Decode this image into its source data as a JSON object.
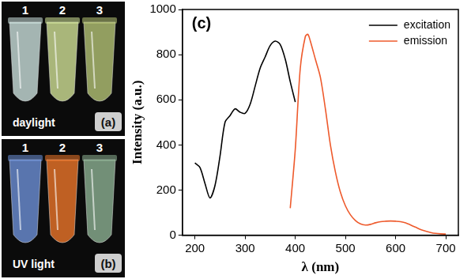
{
  "chart_data": {
    "type": "line",
    "annotations": [
      "(c)"
    ],
    "x_label": "λ (nm)",
    "y_label": "Intensity (a.u.)",
    "xlim": [
      175,
      725
    ],
    "xticks": [
      200,
      300,
      400,
      500,
      600,
      700
    ],
    "ylim": [
      0,
      1000
    ],
    "yticks": [
      0,
      200,
      400,
      600,
      800,
      1000
    ],
    "grid": false,
    "legend": "upper right",
    "series": [
      {
        "name": "excitation",
        "color": "#000000",
        "marker": "none",
        "x": [
          200,
          210,
          220,
          230,
          240,
          250,
          260,
          270,
          280,
          290,
          300,
          310,
          320,
          330,
          340,
          350,
          360,
          370,
          380,
          390,
          400
        ],
        "values": [
          320,
          300,
          230,
          165,
          220,
          350,
          500,
          530,
          560,
          545,
          540,
          580,
          660,
          740,
          790,
          840,
          860,
          845,
          780,
          680,
          590
        ]
      },
      {
        "name": "emission",
        "color": "#ee5a2c",
        "marker": "none",
        "x": [
          390,
          400,
          410,
          420,
          425,
          430,
          440,
          450,
          460,
          470,
          480,
          490,
          500,
          510,
          520,
          530,
          540,
          550,
          560,
          570,
          580,
          590,
          600,
          610,
          620,
          630,
          640,
          650,
          660,
          670,
          680,
          690,
          700
        ],
        "values": [
          120,
          380,
          740,
          880,
          890,
          860,
          780,
          700,
          560,
          400,
          280,
          190,
          130,
          90,
          65,
          50,
          45,
          48,
          55,
          60,
          62,
          63,
          62,
          60,
          55,
          45,
          35,
          25,
          18,
          12,
          8,
          6,
          5
        ]
      }
    ]
  },
  "photos": [
    {
      "caption": "daylight",
      "letter": "(a)",
      "tubes": [
        {
          "label": "1",
          "color": "#cfe6e2"
        },
        {
          "label": "2",
          "color": "#d6e79a"
        },
        {
          "label": "3",
          "color": "#b9c878"
        }
      ]
    },
    {
      "caption": "UV light",
      "letter": "(b)",
      "tubes": [
        {
          "label": "1",
          "color": "#6f93dc"
        },
        {
          "label": "2",
          "color": "#f2782a"
        },
        {
          "label": "3",
          "color": "#8fb596"
        }
      ]
    }
  ]
}
